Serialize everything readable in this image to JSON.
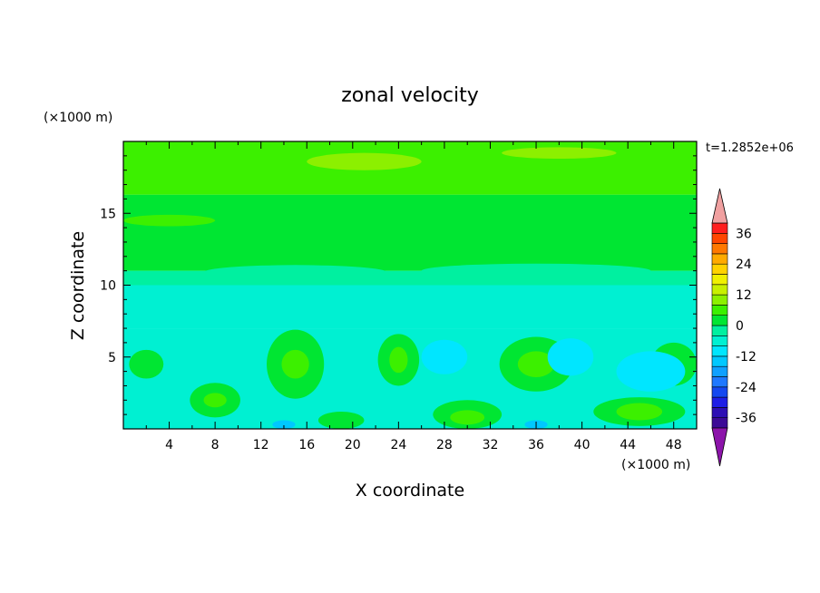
{
  "chart_data": {
    "type": "heatmap",
    "title": "zonal velocity",
    "xlabel": "X coordinate",
    "ylabel": "Z coordinate",
    "x_unit_label": "(×1000 m)",
    "y_unit_label": "(×1000 m)",
    "time_label": "t=1.2852e+06",
    "xlim": [
      0,
      50
    ],
    "ylim": [
      0,
      20
    ],
    "x_ticks": [
      4,
      8,
      12,
      16,
      20,
      24,
      28,
      32,
      36,
      40,
      44,
      48
    ],
    "y_ticks": [
      5,
      10,
      15
    ],
    "colorbar": {
      "levels": [
        -40,
        -36,
        -32,
        -28,
        -24,
        -20,
        -16,
        -12,
        -8,
        -4,
        0,
        4,
        8,
        12,
        16,
        20,
        24,
        28,
        32,
        36,
        40
      ],
      "tick_labels": [
        36,
        24,
        12,
        0,
        -12,
        -24,
        -36
      ],
      "colors": [
        "#3c0a96",
        "#2d0fb4",
        "#1e1ee6",
        "#1448f0",
        "#1e78ff",
        "#0fa0ff",
        "#00c8ff",
        "#00e6ff",
        "#00f0d2",
        "#00f0a0",
        "#00e632",
        "#3cf000",
        "#8cf000",
        "#c8f000",
        "#f0f000",
        "#ffd200",
        "#ffaa00",
        "#ff7800",
        "#ff4600",
        "#ff1e1e"
      ],
      "under_color": "#8c14aa",
      "over_color": "#f0a0a0"
    },
    "background_layers": [
      {
        "z_range": [
          0,
          7
        ],
        "value": -6
      },
      {
        "z_range": [
          7,
          10
        ],
        "value": -6
      },
      {
        "z_range": [
          10,
          11
        ],
        "value": -2
      },
      {
        "z_range": [
          11,
          16.3
        ],
        "value": 2
      },
      {
        "z_range": [
          16.3,
          20
        ],
        "value": 6
      }
    ],
    "features": [
      {
        "x": 21,
        "z": 18.6,
        "rx": 5,
        "rz": 0.6,
        "value": 10
      },
      {
        "x": 38,
        "z": 19.2,
        "rx": 5,
        "rz": 0.4,
        "value": 10
      },
      {
        "x": 4,
        "z": 14.5,
        "rx": 4,
        "rz": 0.4,
        "value": 6
      },
      {
        "x": 15,
        "z": 10.9,
        "rx": 8,
        "rz": 0.5,
        "value": -2
      },
      {
        "x": 36,
        "z": 11.0,
        "rx": 10,
        "rz": 0.5,
        "value": -2
      },
      {
        "x": 15,
        "z": 4.5,
        "rx": 2.5,
        "rz": 2.4,
        "value": 2
      },
      {
        "x": 15,
        "z": 4.5,
        "rx": 1.2,
        "rz": 1.0,
        "value": 6
      },
      {
        "x": 24,
        "z": 4.8,
        "rx": 1.8,
        "rz": 1.8,
        "value": 2
      },
      {
        "x": 24,
        "z": 4.8,
        "rx": 0.8,
        "rz": 0.9,
        "value": 6
      },
      {
        "x": 36,
        "z": 4.5,
        "rx": 3.2,
        "rz": 1.9,
        "value": 2
      },
      {
        "x": 36,
        "z": 4.5,
        "rx": 1.6,
        "rz": 0.9,
        "value": 6
      },
      {
        "x": 8,
        "z": 2.0,
        "rx": 2.2,
        "rz": 1.2,
        "value": 2
      },
      {
        "x": 8,
        "z": 2.0,
        "rx": 1.0,
        "rz": 0.5,
        "value": 6
      },
      {
        "x": 2,
        "z": 4.5,
        "rx": 1.5,
        "rz": 1.0,
        "value": 2
      },
      {
        "x": 48,
        "z": 4.5,
        "rx": 2.0,
        "rz": 1.5,
        "value": 2
      },
      {
        "x": 30,
        "z": 1.0,
        "rx": 3.0,
        "rz": 1.0,
        "value": 2
      },
      {
        "x": 30,
        "z": 0.8,
        "rx": 1.5,
        "rz": 0.5,
        "value": 6
      },
      {
        "x": 45,
        "z": 1.2,
        "rx": 4.0,
        "rz": 1.0,
        "value": 2
      },
      {
        "x": 45,
        "z": 1.2,
        "rx": 2.0,
        "rz": 0.6,
        "value": 6
      },
      {
        "x": 19,
        "z": 0.6,
        "rx": 2.0,
        "rz": 0.6,
        "value": 2
      },
      {
        "x": 46,
        "z": 4.0,
        "rx": 3.0,
        "rz": 1.4,
        "value": -10
      },
      {
        "x": 39,
        "z": 5.0,
        "rx": 2.0,
        "rz": 1.3,
        "value": -10
      },
      {
        "x": 28,
        "z": 5.0,
        "rx": 2.0,
        "rz": 1.2,
        "value": -10
      },
      {
        "x": 14,
        "z": 0.3,
        "rx": 1.0,
        "rz": 0.3,
        "value": -14
      },
      {
        "x": 36,
        "z": 0.3,
        "rx": 1.0,
        "rz": 0.3,
        "value": -14
      }
    ]
  }
}
